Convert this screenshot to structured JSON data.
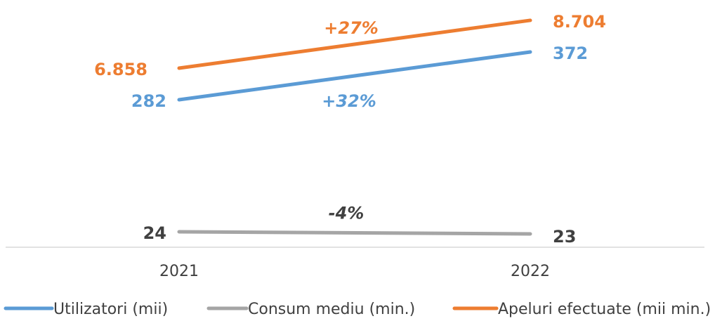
{
  "chart_data": {
    "type": "line",
    "categories": [
      "2021",
      "2022"
    ],
    "series": [
      {
        "name": "Utilizatori (mii)",
        "color": "#5B9BD5",
        "values": [
          282,
          372
        ],
        "value_labels": [
          "282",
          "372"
        ],
        "change_label": "+32%"
      },
      {
        "name": "Consum mediu (min.)",
        "color": "#A5A5A5",
        "values": [
          24,
          23
        ],
        "value_labels": [
          "24",
          "23"
        ],
        "change_label": "-4%"
      },
      {
        "name": "Apeluri efectuate (mii min.)",
        "color": "#ED7D31",
        "values": [
          6858,
          8704
        ],
        "value_labels": [
          "6.858",
          "8.704"
        ],
        "change_label": "+27%"
      }
    ],
    "label_color": "#404040",
    "legend_position": "bottom",
    "gridlines": false
  }
}
